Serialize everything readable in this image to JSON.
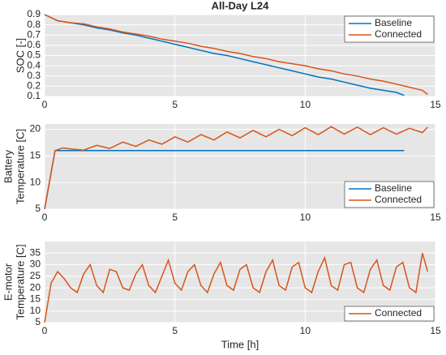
{
  "chart_data": [
    {
      "type": "line",
      "title": "All-Day L24",
      "ylabel": [
        "SOC [-]"
      ],
      "xlim": [
        0,
        15
      ],
      "xticks": [
        0,
        5,
        10,
        15
      ],
      "ylim": [
        0.1,
        0.9
      ],
      "yticks": [
        0.1,
        0.2,
        0.3,
        0.4,
        0.5,
        0.6,
        0.7,
        0.8,
        0.9
      ],
      "grid": true,
      "legend": "upper right",
      "series": [
        {
          "name": "Baseline",
          "color": "#0072bd",
          "x": [
            0,
            0.5,
            1,
            1.5,
            2,
            2.5,
            3,
            3.5,
            4,
            4.5,
            5,
            5.5,
            6,
            6.5,
            7,
            7.5,
            8,
            8.5,
            9,
            9.5,
            10,
            10.5,
            11,
            11.5,
            12,
            12.5,
            13,
            13.5,
            13.8
          ],
          "values": [
            0.9,
            0.84,
            0.82,
            0.8,
            0.77,
            0.75,
            0.72,
            0.7,
            0.67,
            0.64,
            0.61,
            0.58,
            0.55,
            0.52,
            0.5,
            0.47,
            0.44,
            0.41,
            0.38,
            0.35,
            0.32,
            0.29,
            0.27,
            0.24,
            0.21,
            0.18,
            0.16,
            0.14,
            0.11
          ]
        },
        {
          "name": "Connected",
          "color": "#d95319",
          "x": [
            0,
            0.5,
            1,
            1.5,
            2,
            2.5,
            3,
            3.5,
            4,
            4.5,
            5,
            5.5,
            6,
            6.5,
            7,
            7.5,
            8,
            8.5,
            9,
            9.5,
            10,
            10.5,
            11,
            11.5,
            12,
            12.5,
            13,
            13.5,
            14,
            14.5,
            14.7
          ],
          "values": [
            0.9,
            0.84,
            0.82,
            0.81,
            0.78,
            0.76,
            0.73,
            0.71,
            0.69,
            0.66,
            0.64,
            0.62,
            0.59,
            0.57,
            0.54,
            0.52,
            0.49,
            0.47,
            0.44,
            0.42,
            0.4,
            0.37,
            0.35,
            0.32,
            0.3,
            0.27,
            0.25,
            0.22,
            0.19,
            0.16,
            0.12
          ]
        }
      ]
    },
    {
      "type": "line",
      "ylabel": [
        "Battery",
        "Temperature [C]"
      ],
      "xlim": [
        0,
        15
      ],
      "xticks": [
        0,
        5,
        10,
        15
      ],
      "ylim": [
        5,
        21
      ],
      "yticks": [
        5,
        10,
        15,
        20
      ],
      "grid": true,
      "legend": "lower right",
      "series": [
        {
          "name": "Baseline",
          "color": "#0072bd",
          "x": [
            0,
            0.4,
            0.6,
            1,
            13.8
          ],
          "values": [
            5,
            16,
            16,
            16,
            16
          ]
        },
        {
          "name": "Connected",
          "color": "#d95319",
          "x": [
            0,
            0.4,
            0.7,
            1,
            1.5,
            2,
            2.5,
            3,
            3.5,
            4,
            4.5,
            5,
            5.5,
            6,
            6.5,
            7,
            7.5,
            8,
            8.5,
            9,
            9.5,
            10,
            10.5,
            11,
            11.5,
            12,
            12.5,
            13,
            13.5,
            14,
            14.5,
            14.7
          ],
          "values": [
            5,
            16,
            16.5,
            16.3,
            16.1,
            17,
            16.4,
            17.6,
            16.8,
            18,
            17.2,
            18.6,
            17.6,
            19,
            18,
            19.5,
            18.4,
            19.8,
            18.6,
            20,
            18.8,
            20.3,
            19,
            20.5,
            19.1,
            20.4,
            19,
            20.3,
            19.1,
            20.2,
            19.4,
            20.4
          ]
        }
      ]
    },
    {
      "type": "line",
      "ylabel": [
        "E-motor",
        "Temperature [C]"
      ],
      "xlabel": "Time [h]",
      "xlim": [
        0,
        15
      ],
      "xticks": [
        0,
        5,
        10,
        15
      ],
      "ylim": [
        5,
        40
      ],
      "yticks": [
        5,
        10,
        15,
        20,
        25,
        30,
        35
      ],
      "grid": true,
      "legend": "lower right",
      "series": [
        {
          "name": "Connected",
          "color": "#d95319",
          "x": [
            0,
            0.25,
            0.5,
            0.75,
            1,
            1.25,
            1.5,
            1.75,
            2,
            2.25,
            2.5,
            2.75,
            3,
            3.25,
            3.5,
            3.75,
            4,
            4.25,
            4.5,
            4.75,
            5,
            5.25,
            5.5,
            5.75,
            6,
            6.25,
            6.5,
            6.75,
            7,
            7.25,
            7.5,
            7.75,
            8,
            8.25,
            8.5,
            8.75,
            9,
            9.25,
            9.5,
            9.75,
            10,
            10.25,
            10.5,
            10.75,
            11,
            11.25,
            11.5,
            11.75,
            12,
            12.25,
            12.5,
            12.75,
            13,
            13.25,
            13.5,
            13.75,
            14,
            14.25,
            14.5,
            14.7
          ],
          "values": [
            5,
            22,
            27,
            24,
            20,
            18,
            26,
            30,
            21,
            18,
            28,
            27,
            20,
            19,
            26,
            30,
            21,
            18,
            25,
            32,
            22,
            19,
            27,
            30,
            21,
            18,
            26,
            31,
            21,
            19,
            28,
            30,
            20,
            18,
            27,
            32,
            21,
            19,
            29,
            31,
            20,
            18,
            27,
            33,
            21,
            19,
            30,
            31,
            20,
            18,
            28,
            32,
            21,
            19,
            29,
            31,
            20,
            18,
            35,
            27
          ]
        }
      ]
    }
  ]
}
